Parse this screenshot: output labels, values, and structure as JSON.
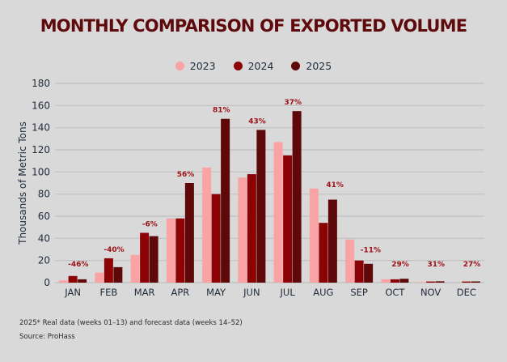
{
  "chart_data": {
    "type": "bar",
    "title": "MONTHLY COMPARISON OF EXPORTED VOLUME",
    "xlabel": "",
    "ylabel": "Thousands of Metric Tons",
    "ylim": [
      0,
      180
    ],
    "yticks": [
      0,
      20,
      40,
      60,
      80,
      100,
      120,
      140,
      160,
      180
    ],
    "grid": true,
    "legend_position": "top-center",
    "categories": [
      "JAN",
      "FEB",
      "MAR",
      "APR",
      "MAY",
      "JUN",
      "JUL",
      "AUG",
      "SEP",
      "OCT",
      "NOV",
      "DEC"
    ],
    "series": [
      {
        "name": "2023",
        "color": "#f9a3a4",
        "values": [
          2,
          9,
          25,
          58,
          104,
          95,
          127,
          85,
          39,
          3,
          0.5,
          0.2
        ]
      },
      {
        "name": "2024",
        "color": "#8c0306",
        "values": [
          6,
          22,
          45,
          58,
          80,
          98,
          115,
          54,
          20,
          3,
          1,
          1
        ]
      },
      {
        "name": "2025",
        "color": "#5e0809",
        "values": [
          3,
          14,
          42,
          90,
          148,
          138,
          155,
          75,
          17,
          3.5,
          1.2,
          1.1
        ]
      }
    ],
    "annotations": [
      "-46%",
      "-40%",
      "-6%",
      "56%",
      "81%",
      "43%",
      "37%",
      "41%",
      "-11%",
      "29%",
      "31%",
      "27%"
    ]
  },
  "footnotes": {
    "note": "2025* Real data (weeks 01–13) and forecast data (weeks 14–52)",
    "source": "Source: ProHass"
  }
}
